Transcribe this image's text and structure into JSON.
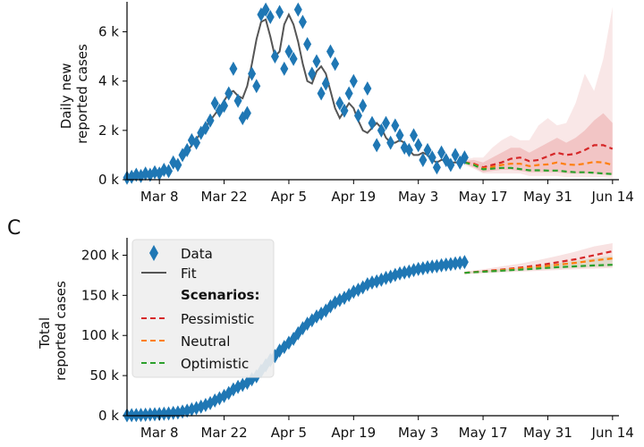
{
  "chart_data": [
    {
      "panel": "",
      "type": "line",
      "ylabel": "Daily new\nreported cases",
      "y_ticks": [
        "0 k",
        "2 k",
        "4 k",
        "6 k"
      ],
      "y_tick_values": [
        0,
        2000,
        4000,
        6000
      ],
      "x_ticks": [
        "Mar 8",
        "Mar 22",
        "Apr 5",
        "Apr 19",
        "May 3",
        "May 17",
        "May 31",
        "Jun 14"
      ],
      "x_tick_days": [
        7,
        21,
        35,
        49,
        63,
        77,
        91,
        105
      ],
      "xlim_days": [
        0,
        106
      ],
      "ylim": [
        0,
        7000
      ],
      "series": [
        {
          "name": "Data",
          "kind": "diamond",
          "color": "#1f77b4",
          "x_days": [
            0,
            1,
            2,
            3,
            4,
            5,
            6,
            7,
            8,
            9,
            10,
            11,
            12,
            13,
            14,
            15,
            16,
            17,
            18,
            19,
            20,
            21,
            22,
            23,
            24,
            25,
            26,
            27,
            28,
            29,
            30,
            31,
            32,
            33,
            34,
            35,
            36,
            37,
            38,
            39,
            40,
            41,
            42,
            43,
            44,
            45,
            46,
            47,
            48,
            49,
            50,
            51,
            52,
            53,
            54,
            55,
            56,
            57,
            58,
            59,
            60,
            61,
            62,
            63,
            64,
            65,
            66,
            67,
            68,
            69,
            70,
            71,
            72,
            73
          ],
          "y": [
            80,
            120,
            200,
            150,
            250,
            200,
            300,
            250,
            400,
            350,
            700,
            600,
            1000,
            1200,
            1600,
            1500,
            1900,
            2100,
            2400,
            3100,
            2800,
            3000,
            3500,
            4500,
            3200,
            2500,
            2700,
            4300,
            3800,
            6700,
            6900,
            6600,
            5000,
            6800,
            4500,
            5200,
            4900,
            6900,
            6400,
            5500,
            4300,
            4800,
            3500,
            3900,
            5200,
            4700,
            3100,
            2800,
            3500,
            4000,
            2600,
            3000,
            3700,
            2300,
            1400,
            2000,
            2300,
            1500,
            2200,
            1800,
            1300,
            1200,
            1800,
            1400,
            800,
            1200,
            900,
            500,
            1100,
            800,
            600,
            1000,
            700,
            900
          ]
        },
        {
          "name": "Fit",
          "kind": "line",
          "color": "#555555",
          "x_days": [
            12,
            14,
            16,
            18,
            20,
            21,
            22,
            23,
            24,
            25,
            26,
            27,
            28,
            29,
            30,
            31,
            32,
            33,
            34,
            35,
            36,
            37,
            38,
            39,
            40,
            41,
            42,
            43,
            44,
            45,
            46,
            47,
            48,
            49,
            50,
            51,
            52,
            53,
            54,
            55,
            56,
            57,
            58,
            59,
            60,
            61,
            62,
            63,
            64,
            65,
            66,
            67,
            68,
            69,
            70,
            71,
            72,
            73
          ],
          "y": [
            900,
            1400,
            1900,
            2400,
            2900,
            3200,
            3500,
            3600,
            3400,
            3300,
            3800,
            4700,
            5700,
            6400,
            6500,
            5800,
            5000,
            5200,
            6300,
            6700,
            6300,
            5600,
            4700,
            4000,
            3900,
            4400,
            4600,
            4300,
            3600,
            2900,
            2500,
            2800,
            3100,
            2900,
            2400,
            2000,
            1900,
            2100,
            2300,
            2100,
            1700,
            1500,
            1500,
            1600,
            1500,
            1200,
            1000,
            1000,
            1100,
            1000,
            800,
            700,
            800,
            800,
            700,
            700,
            700,
            800
          ]
        },
        {
          "name": "Pessimistic",
          "kind": "dashed",
          "color": "#d62728",
          "x_days": [
            73,
            75,
            77,
            79,
            81,
            83,
            85,
            87,
            89,
            91,
            93,
            95,
            97,
            99,
            101,
            103,
            105
          ],
          "y": [
            700,
            650,
            500,
            600,
            700,
            850,
            900,
            750,
            800,
            950,
            1100,
            1000,
            1050,
            1200,
            1400,
            1400,
            1250
          ]
        },
        {
          "name": "Neutral",
          "kind": "dashed",
          "color": "#ff7f0e",
          "x_days": [
            73,
            75,
            77,
            79,
            81,
            83,
            85,
            87,
            89,
            91,
            93,
            95,
            97,
            99,
            101,
            103,
            105
          ],
          "y": [
            700,
            620,
            450,
            520,
            600,
            650,
            650,
            550,
            600,
            620,
            700,
            620,
            600,
            650,
            720,
            700,
            600
          ]
        },
        {
          "name": "Optimistic",
          "kind": "dashed",
          "color": "#2ca02c",
          "x_days": [
            73,
            75,
            77,
            79,
            81,
            83,
            85,
            87,
            89,
            91,
            93,
            95,
            97,
            99,
            101,
            103,
            105
          ],
          "y": [
            700,
            600,
            420,
            450,
            480,
            480,
            430,
            380,
            380,
            370,
            370,
            330,
            300,
            300,
            280,
            250,
            230
          ]
        }
      ],
      "bands": [
        {
          "color": "#e8a0a0",
          "opacity": 0.25,
          "x_days": [
            73,
            75,
            77,
            79,
            81,
            83,
            85,
            87,
            89,
            91,
            93,
            95,
            97,
            99,
            101,
            103,
            105
          ],
          "lower": [
            600,
            450,
            250,
            250,
            250,
            250,
            250,
            150,
            150,
            150,
            150,
            100,
            100,
            100,
            100,
            100,
            50
          ],
          "upper": [
            800,
            900,
            900,
            1300,
            1600,
            1800,
            1600,
            1600,
            2200,
            2500,
            2200,
            2300,
            3100,
            4300,
            3600,
            4900,
            7000
          ]
        },
        {
          "color": "#e07878",
          "opacity": 0.3,
          "x_days": [
            73,
            75,
            77,
            79,
            81,
            83,
            85,
            87,
            89,
            91,
            93,
            95,
            97,
            99,
            101,
            103,
            105
          ],
          "lower": [
            650,
            500,
            300,
            350,
            400,
            400,
            350,
            300,
            300,
            300,
            300,
            250,
            250,
            250,
            250,
            200,
            200
          ],
          "upper": [
            760,
            800,
            700,
            900,
            1100,
            1300,
            1300,
            1100,
            1300,
            1500,
            1700,
            1500,
            1700,
            2000,
            2400,
            2700,
            2300
          ]
        }
      ]
    },
    {
      "panel": "C",
      "type": "line",
      "ylabel": "Total\nreported cases",
      "y_ticks": [
        "0 k",
        "50 k",
        "100 k",
        "150 k",
        "200 k"
      ],
      "y_tick_values": [
        0,
        50000,
        100000,
        150000,
        200000
      ],
      "x_ticks": [
        "Mar 8",
        "Mar 22",
        "Apr 5",
        "Apr 19",
        "May 3",
        "May 17",
        "May 31",
        "Jun 14"
      ],
      "x_tick_days": [
        7,
        21,
        35,
        49,
        63,
        77,
        91,
        105
      ],
      "xlim_days": [
        0,
        106
      ],
      "ylim": [
        0,
        215000
      ],
      "series": [
        {
          "name": "Data",
          "kind": "diamond",
          "color": "#1f77b4",
          "x_days": [
            0,
            1,
            2,
            3,
            4,
            5,
            6,
            7,
            8,
            9,
            10,
            11,
            12,
            13,
            14,
            15,
            16,
            17,
            18,
            19,
            20,
            21,
            22,
            23,
            24,
            25,
            26,
            27,
            28,
            29,
            30,
            31,
            32,
            33,
            34,
            35,
            36,
            37,
            38,
            39,
            40,
            41,
            42,
            43,
            44,
            45,
            46,
            47,
            48,
            49,
            50,
            51,
            52,
            53,
            54,
            55,
            56,
            57,
            58,
            59,
            60,
            61,
            62,
            63,
            64,
            65,
            66,
            67,
            68,
            69,
            70,
            71,
            72,
            73
          ],
          "y": [
            600,
            700,
            900,
            1000,
            1300,
            1500,
            1800,
            2100,
            2500,
            2800,
            3500,
            4100,
            5100,
            6300,
            7900,
            9400,
            11300,
            13400,
            15800,
            18900,
            21700,
            24700,
            28200,
            32700,
            35900,
            38400,
            41100,
            45400,
            49200,
            55900,
            62800,
            69400,
            74400,
            81200,
            85700,
            90900,
            95800,
            102700,
            109100,
            114600,
            118900,
            123700,
            127200,
            131100,
            136300,
            141000,
            144100,
            146900,
            150400,
            154400,
            157000,
            160000,
            163700,
            166000,
            167400,
            169400,
            171700,
            173200,
            175400,
            177200,
            178500,
            179700,
            181500,
            182900,
            183700,
            184900,
            185800,
            186300,
            187400,
            188200,
            188800,
            189800,
            190500,
            191400
          ]
        },
        {
          "name": "Fit",
          "kind": "line",
          "color": "#555555",
          "x_days": [],
          "y": []
        },
        {
          "name": "Pessimistic",
          "kind": "dashed",
          "color": "#d62728",
          "x_days": [
            73,
            77,
            81,
            85,
            89,
            93,
            97,
            101,
            105
          ],
          "y": [
            178000,
            180000,
            182000,
            184500,
            187500,
            191000,
            195000,
            200000,
            205000
          ]
        },
        {
          "name": "Neutral",
          "kind": "dashed",
          "color": "#ff7f0e",
          "x_days": [
            73,
            77,
            81,
            85,
            89,
            93,
            97,
            101,
            105
          ],
          "y": [
            178000,
            179500,
            181500,
            183500,
            185500,
            188000,
            190500,
            193500,
            196000
          ]
        },
        {
          "name": "Optimistic",
          "kind": "dashed",
          "color": "#2ca02c",
          "x_days": [
            73,
            77,
            81,
            85,
            89,
            93,
            97,
            101,
            105
          ],
          "y": [
            178000,
            179500,
            180700,
            182000,
            183500,
            185000,
            186200,
            187300,
            188000
          ]
        }
      ],
      "bands": [
        {
          "color": "#e8a0a0",
          "opacity": 0.3,
          "x_days": [
            73,
            77,
            81,
            85,
            89,
            93,
            97,
            101,
            105
          ],
          "lower": [
            176500,
            177500,
            178500,
            179500,
            180500,
            181500,
            182500,
            183200,
            184000
          ],
          "upper": [
            179500,
            182500,
            186000,
            189500,
            194000,
            199000,
            204500,
            211000,
            218000
          ]
        },
        {
          "color": "#b8c9a0",
          "opacity": 0.35,
          "x_days": [
            73,
            77,
            81,
            85,
            89,
            93,
            97,
            101,
            105
          ],
          "lower": [
            177000,
            178500,
            179500,
            180800,
            182000,
            183200,
            184300,
            185200,
            186000
          ],
          "upper": [
            179000,
            180800,
            182700,
            184800,
            187200,
            190000,
            193000,
            196500,
            199000
          ]
        }
      ],
      "legend": {
        "items": [
          "Data",
          "Fit"
        ],
        "scenarios_heading": "Scenarios:",
        "scenarios": [
          "Pessimistic",
          "Neutral",
          "Optimistic"
        ]
      }
    }
  ],
  "colors": {
    "data": "#1f77b4",
    "fit": "#555555",
    "pessimistic": "#d62728",
    "neutral": "#ff7f0e",
    "optimistic": "#2ca02c"
  }
}
